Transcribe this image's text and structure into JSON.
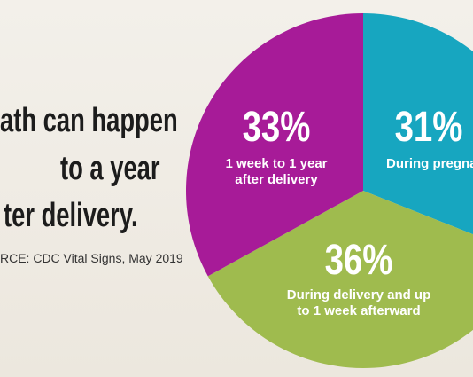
{
  "headline": [
    "ath can happen",
    "to a year",
    "ter delivery."
  ],
  "source": "RCE: CDC Vital Signs, May 2019",
  "chart_data": {
    "type": "pie",
    "categories": [
      "During pregna",
      "During delivery and up to 1 week afterward",
      "1 week to 1 year after delivery"
    ],
    "values": [
      31,
      36,
      33
    ],
    "value_labels": [
      "31%",
      "36%",
      "33%"
    ],
    "colors": [
      "#17a6c0",
      "#9fbb4e",
      "#a71b98"
    ]
  }
}
